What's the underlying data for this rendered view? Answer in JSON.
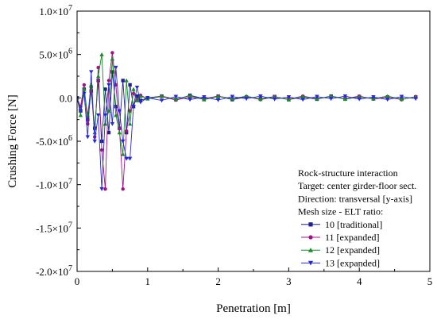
{
  "chart_data": {
    "type": "line",
    "xlabel": "Penetration [m]",
    "ylabel": "Crushing Force [N]",
    "xlim": [
      0,
      5
    ],
    "ylim": [
      -20000000,
      10000000
    ],
    "x_ticks": [
      {
        "value": 0,
        "label": "0"
      },
      {
        "value": 1,
        "label": "1"
      },
      {
        "value": 2,
        "label": "2"
      },
      {
        "value": 3,
        "label": "3"
      },
      {
        "value": 4,
        "label": "4"
      },
      {
        "value": 5,
        "label": "5"
      }
    ],
    "y_ticks": [
      {
        "value": 10000000,
        "mant": "1.0",
        "exp": "7"
      },
      {
        "value": 5000000,
        "mant": "5.0",
        "exp": "6"
      },
      {
        "value": 0,
        "mant": "0.0",
        "exp": ""
      },
      {
        "value": -5000000,
        "mant": "-5.0",
        "exp": "6"
      },
      {
        "value": -10000000,
        "mant": "-1.0",
        "exp": "7"
      },
      {
        "value": -15000000,
        "mant": "-1.5",
        "exp": "7"
      },
      {
        "value": -20000000,
        "mant": "-2.0",
        "exp": "7"
      }
    ],
    "legend_title": [
      "Rock-structure interaction",
      "Target: center girder-floor sect.",
      "Direction: transversal [y-axis]",
      "Mesh size - ELT ratio:"
    ],
    "legend_position": "bottom-right",
    "series": [
      {
        "name": "10 [traditional]",
        "color": "#1f1f8f",
        "marker": "square",
        "x": [
          0.0,
          0.05,
          0.1,
          0.15,
          0.2,
          0.25,
          0.3,
          0.35,
          0.4,
          0.45,
          0.5,
          0.55,
          0.6,
          0.65,
          0.7,
          0.75,
          0.8,
          0.85,
          0.9,
          1.0,
          1.2,
          1.4,
          1.6,
          1.8,
          2.0,
          2.2,
          2.4,
          2.6,
          2.8,
          3.0,
          3.2,
          3.4,
          3.6,
          3.8,
          4.0,
          4.2,
          4.4,
          4.6,
          4.8
        ],
        "y": [
          0,
          -1500000,
          1000000,
          -2500000,
          800000,
          -3500000,
          2000000,
          -5000000,
          1000000,
          -4000000,
          3000000,
          -1000000,
          -3500000,
          2000000,
          -4000000,
          1500000,
          -1000000,
          200000,
          -300000,
          0,
          200000,
          -200000,
          300000,
          -100000,
          200000,
          -200000,
          100000,
          -100000,
          150000,
          -200000,
          100000,
          -150000,
          200000,
          -100000,
          150000,
          -100000,
          100000,
          -150000,
          100000
        ]
      },
      {
        "name": "11 [expanded]",
        "color": "#a0147f",
        "marker": "circle",
        "x": [
          0.0,
          0.05,
          0.1,
          0.15,
          0.2,
          0.25,
          0.3,
          0.35,
          0.4,
          0.45,
          0.5,
          0.55,
          0.6,
          0.65,
          0.7,
          0.75,
          0.8,
          0.85,
          0.9,
          1.0,
          1.2,
          1.4,
          1.6,
          1.8,
          2.0,
          2.2,
          2.4,
          2.6,
          2.8,
          3.0,
          3.2,
          3.4,
          3.6,
          3.8,
          4.0,
          4.2,
          4.4,
          4.6,
          4.8
        ],
        "y": [
          0,
          -1000000,
          1500000,
          -3000000,
          1200000,
          -4500000,
          3500000,
          -6000000,
          -10500000,
          2000000,
          5200000,
          1500000,
          -3500000,
          -10500000,
          -3800000,
          -1500000,
          500000,
          -200000,
          300000,
          -100000,
          150000,
          -250000,
          100000,
          -150000,
          200000,
          -100000,
          150000,
          -200000,
          100000,
          -150000,
          200000,
          -100000,
          150000,
          -100000,
          200000,
          -150000,
          100000,
          -200000,
          150000
        ]
      },
      {
        "name": "12 [expanded]",
        "color": "#1a8a2a",
        "marker": "triangle-up",
        "x": [
          0.0,
          0.05,
          0.1,
          0.15,
          0.2,
          0.25,
          0.3,
          0.35,
          0.4,
          0.45,
          0.5,
          0.55,
          0.6,
          0.65,
          0.7,
          0.75,
          0.8,
          0.85,
          0.9,
          1.0,
          1.2,
          1.4,
          1.6,
          1.8,
          2.0,
          2.2,
          2.4,
          2.6,
          2.8,
          3.0,
          3.2,
          3.4,
          3.6,
          3.8,
          4.0,
          4.2,
          4.4,
          4.6,
          4.8
        ],
        "y": [
          0,
          -2000000,
          1000000,
          -2000000,
          1500000,
          -4000000,
          2500000,
          5000000,
          -3000000,
          -1500000,
          4500000,
          -2000000,
          -4000000,
          -6500000,
          2000000,
          -3000000,
          1000000,
          -300000,
          200000,
          -100000,
          200000,
          -150000,
          250000,
          -200000,
          150000,
          -100000,
          200000,
          -150000,
          100000,
          -200000,
          150000,
          -100000,
          200000,
          -150000,
          100000,
          -100000,
          200000,
          -150000,
          100000
        ]
      },
      {
        "name": "13 [expanded]",
        "color": "#2828d8",
        "marker": "triangle-down",
        "x": [
          0.0,
          0.05,
          0.1,
          0.15,
          0.2,
          0.25,
          0.3,
          0.35,
          0.4,
          0.45,
          0.5,
          0.55,
          0.6,
          0.65,
          0.7,
          0.75,
          0.8,
          0.85,
          0.9,
          1.0,
          1.2,
          1.4,
          1.6,
          1.8,
          2.0,
          2.2,
          2.4,
          2.6,
          2.8,
          3.0,
          3.2,
          3.4,
          3.6,
          3.8,
          4.0,
          4.2,
          4.4,
          4.6,
          4.8
        ],
        "y": [
          0,
          -1500000,
          500000,
          -4500000,
          3000000,
          -5000000,
          -2000000,
          -10500000,
          -2000000,
          1500000,
          -3000000,
          3500000,
          -1500000,
          -5000000,
          -7000000,
          -7000000,
          -1000000,
          1200000,
          -500000,
          0,
          -300000,
          150000,
          -200000,
          100000,
          -250000,
          150000,
          -100000,
          200000,
          -150000,
          100000,
          -200000,
          150000,
          -100000,
          200000,
          -150000,
          100000,
          -200000,
          150000,
          -100000
        ]
      }
    ]
  }
}
